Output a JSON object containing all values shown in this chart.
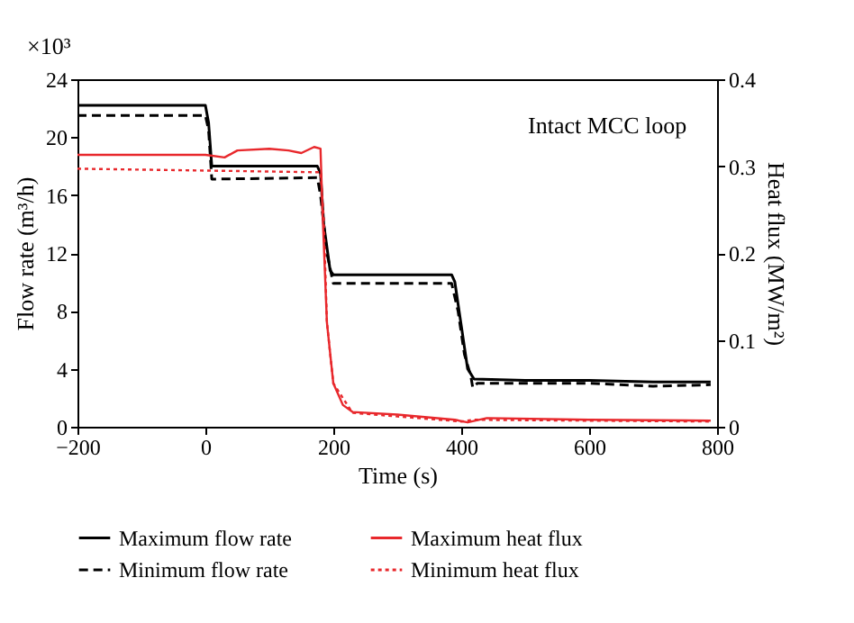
{
  "chart_data": {
    "type": "line",
    "xlabel": "Time (s)",
    "ylabel": "Flow rate (m³/h)",
    "y2label": "Heat flux (MW/m²)",
    "annotations": [
      "×10³",
      "Intact MCC loop"
    ],
    "xlim": [
      -200,
      800
    ],
    "xticks": [
      -200,
      0,
      200,
      400,
      600,
      800
    ],
    "ylim": [
      0,
      24
    ],
    "yticks": [
      0,
      4,
      8,
      12,
      16,
      20,
      24
    ],
    "y2lim": [
      0,
      0.4
    ],
    "y2ticks": [
      {
        "value": 0,
        "label": "0"
      },
      0.1,
      0.2,
      0.3,
      0.4
    ],
    "grid": false,
    "legend": "bottom",
    "series": [
      {
        "name": "Maximum flow rate",
        "color": "#000000",
        "line_style": "solid",
        "x": [
          -200,
          0,
          5,
          10,
          175,
          180,
          185,
          195,
          200,
          385,
          390,
          400,
          410,
          420,
          500,
          600,
          700,
          790
        ],
        "values": [
          22.2,
          22.2,
          21,
          18,
          18,
          17.5,
          14,
          10.8,
          10.5,
          10.5,
          10,
          7,
          4,
          3.3,
          3.2,
          3.2,
          3.1,
          3.1
        ]
      },
      {
        "name": "Minimum flow rate",
        "color": "#000000",
        "line_style": "dashed",
        "x": [
          -200,
          0,
          5,
          10,
          175,
          180,
          190,
          200,
          385,
          395,
          405,
          415,
          418,
          425,
          600,
          700,
          790
        ],
        "values": [
          21.5,
          21.5,
          20.5,
          17.1,
          17.2,
          16,
          12,
          9.9,
          9.9,
          8,
          5,
          3.5,
          2.7,
          3.0,
          3.0,
          2.8,
          2.9
        ]
      },
      {
        "name": "Maximum heat flux",
        "color": "#e8282c",
        "line_style": "solid",
        "axis": "y2",
        "x": [
          -200,
          0,
          30,
          50,
          100,
          130,
          150,
          170,
          180,
          183,
          190,
          200,
          215,
          230,
          300,
          390,
          410,
          440,
          600,
          790
        ],
        "values": [
          0.313,
          0.313,
          0.31,
          0.318,
          0.32,
          0.318,
          0.315,
          0.322,
          0.32,
          0.25,
          0.12,
          0.05,
          0.025,
          0.017,
          0.014,
          0.008,
          0.005,
          0.01,
          0.008,
          0.007
        ]
      },
      {
        "name": "Minimum heat flux",
        "color": "#e8282c",
        "line_style": "dotted",
        "axis": "y2",
        "x": [
          -200,
          170,
          180,
          185,
          190,
          200,
          230,
          400,
          420,
          600,
          790
        ],
        "values": [
          0.297,
          0.293,
          0.293,
          0.24,
          0.12,
          0.05,
          0.016,
          0.006,
          0.008,
          0.007,
          0.006
        ]
      }
    ]
  }
}
